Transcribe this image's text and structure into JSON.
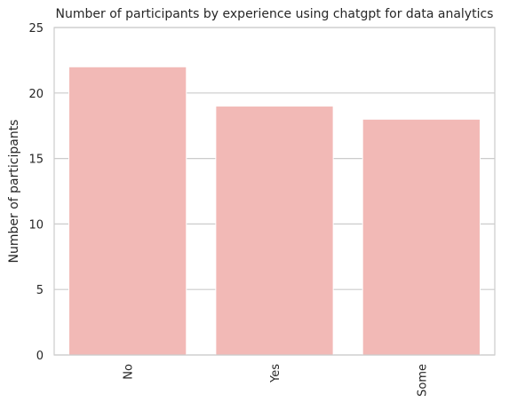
{
  "chart_data": {
    "type": "bar",
    "title": "Number of participants by experience using chatgpt for data analytics",
    "xlabel": "",
    "ylabel": "Number of participants",
    "categories": [
      "No",
      "Yes",
      "Some"
    ],
    "values": [
      22,
      19,
      18
    ],
    "ylim": [
      0,
      25
    ],
    "yticks": [
      0,
      5,
      10,
      15,
      20,
      25
    ],
    "grid": "horizontal",
    "legend": "none",
    "bar_color": "#f2b9b6",
    "grid_color": "#cccccc",
    "frame_color": "#cccccc",
    "text_color": "#262626"
  }
}
